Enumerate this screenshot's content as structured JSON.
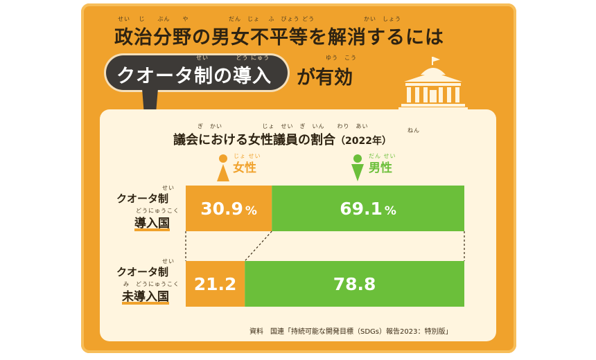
{
  "title": {
    "line1": "政治分野の男女不平等を解消するには",
    "highlight": "クオータ制の導入",
    "tail": "が有効",
    "ruby": [
      "せい",
      "じ",
      "ぶん",
      "や",
      "だん",
      "じょ",
      "ふ",
      "びょう",
      "どう",
      "かい",
      "しょう"
    ]
  },
  "chart_data": {
    "type": "bar",
    "orientation": "horizontal-stacked-100",
    "title": "議会における女性議員の割合",
    "title_note": "（2022年）",
    "categories": [
      "クオータ制導入国",
      "クオータ制未導入国"
    ],
    "category_display": [
      {
        "line1": "クオータ制",
        "line2": "導入国"
      },
      {
        "line1": "クオータ制",
        "line2": "未導入国"
      }
    ],
    "series": [
      {
        "name": "女性",
        "values": [
          30.9,
          21.2
        ],
        "labels": [
          "30.9",
          "21.2"
        ],
        "unit": [
          "%",
          ""
        ],
        "color": "#f0a22c"
      },
      {
        "name": "男性",
        "values": [
          69.1,
          78.8
        ],
        "labels": [
          "69.1",
          "78.8"
        ],
        "unit": [
          "%",
          ""
        ],
        "color": "#6bbf3a"
      }
    ],
    "xlim": [
      0,
      100
    ],
    "legend": "top"
  },
  "source": "資料　国連「持続可能な開発目標（SDGs）報告2023：特別版」",
  "colors": {
    "background": "#f0a22c",
    "panel": "#fff5df",
    "female": "#f0a22c",
    "male": "#6bbf3a",
    "pill": "#3d3a37"
  },
  "icons": [
    "parliament-building-icon",
    "female-person-icon",
    "male-person-icon"
  ]
}
